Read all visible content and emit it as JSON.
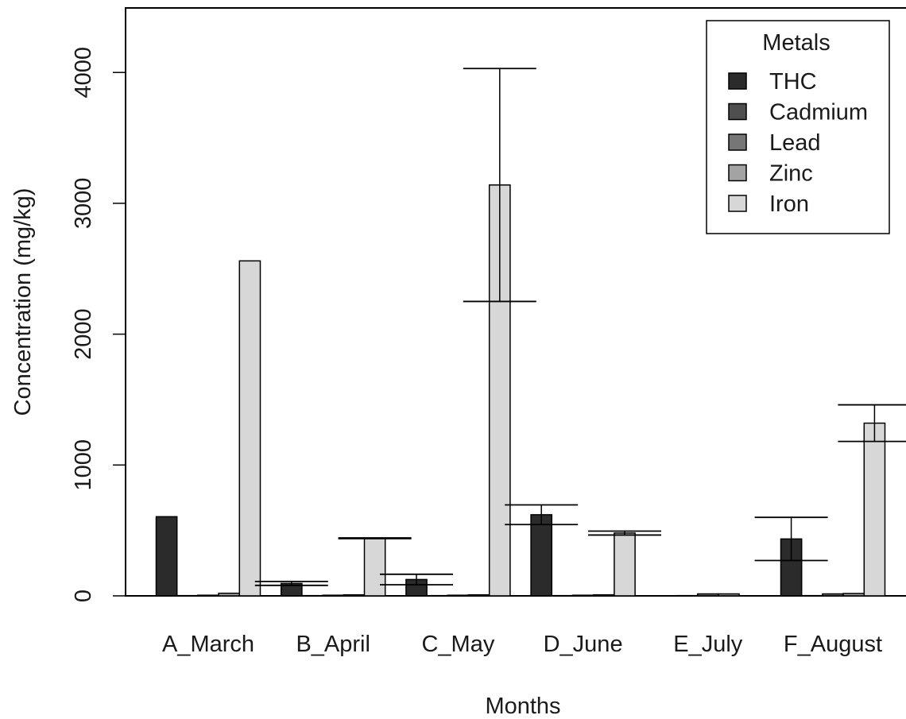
{
  "chart_data": {
    "type": "bar",
    "title": "",
    "xlabel": "Months",
    "ylabel": "Concentration (mg/kg)",
    "ylim": [
      0,
      4500
    ],
    "yticks": [
      0,
      1000,
      2000,
      3000,
      4000
    ],
    "ytick_labels": [
      "0",
      "1000",
      "2000",
      "3000",
      "4000"
    ],
    "categories": [
      "A_March",
      "B_April",
      "C_May",
      "D_June",
      "E_July",
      "F_August"
    ],
    "legend": {
      "title": "Metals",
      "position": "top-right"
    },
    "series": [
      {
        "name": "THC",
        "color": "#2b2b2b",
        "values": [
          605,
          95,
          125,
          620,
          0,
          435
        ],
        "error": [
          null,
          15,
          40,
          75,
          null,
          165
        ]
      },
      {
        "name": "Cadmium",
        "color": "#4f4f4f",
        "values": [
          2,
          2,
          2,
          2,
          2,
          2
        ],
        "error": [
          null,
          null,
          null,
          null,
          null,
          null
        ]
      },
      {
        "name": "Lead",
        "color": "#767676",
        "values": [
          5,
          5,
          5,
          5,
          15,
          15
        ],
        "error": [
          null,
          null,
          null,
          null,
          null,
          null
        ]
      },
      {
        "name": "Zinc",
        "color": "#a3a3a3",
        "values": [
          20,
          8,
          8,
          8,
          15,
          18
        ],
        "error": [
          null,
          null,
          null,
          null,
          null,
          null
        ]
      },
      {
        "name": "Iron",
        "color": "#d7d7d7",
        "values": [
          2560,
          440,
          3140,
          480,
          0,
          1320
        ],
        "error": [
          null,
          3,
          890,
          15,
          null,
          140
        ]
      }
    ]
  }
}
